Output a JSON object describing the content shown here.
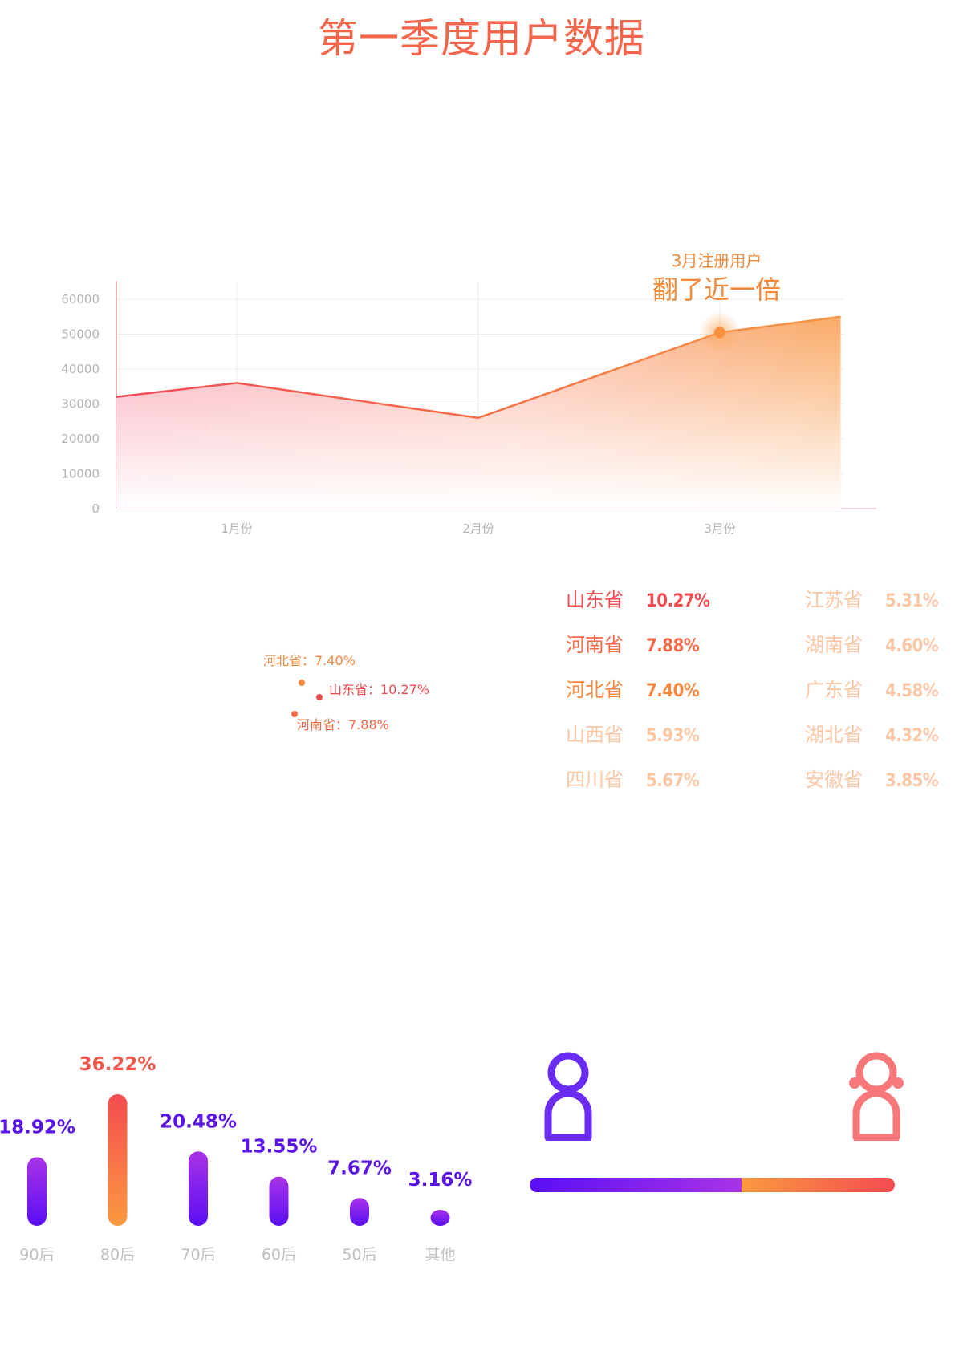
{
  "title": "第一季度用户数据",
  "colors": {
    "title": "#f3664b",
    "red": "#f04b4f",
    "orange": "#f5883e",
    "purple": "#5a12f0",
    "purple_light": "#a52ee8",
    "faded": "#fbc6a4"
  },
  "line_chart": {
    "type": "area",
    "x_labels": [
      "1月份",
      "2月份",
      "3月份"
    ],
    "points": [
      {
        "x": 0.5,
        "y": 32000
      },
      {
        "x": 1,
        "y": 36000
      },
      {
        "x": 2,
        "y": 26000
      },
      {
        "x": 3,
        "y": 50500
      },
      {
        "x": 3.5,
        "y": 55000
      }
    ],
    "highlight": {
      "x": 3,
      "y": 50500
    },
    "ylim": [
      0,
      60000
    ],
    "yticks": [
      0,
      10000,
      20000,
      30000,
      40000,
      50000,
      60000
    ],
    "annotation": {
      "small": "3月注册用户",
      "big": "翻了近一倍"
    }
  },
  "map_labels": [
    {
      "text": "河北省：7.40%",
      "color": "#f5883e"
    },
    {
      "text": "山东省：10.27%",
      "color": "#f04b4f"
    },
    {
      "text": "河南省：7.88%",
      "color": "#f26a48"
    }
  ],
  "provinces": [
    {
      "name": "山东省",
      "value": "10.27%",
      "color": "#f04b4f"
    },
    {
      "name": "河南省",
      "value": "7.88%",
      "color": "#f26a48"
    },
    {
      "name": "河北省",
      "value": "7.40%",
      "color": "#f5883e"
    },
    {
      "name": "山西省",
      "value": "5.93%",
      "color": "#fbc6a4"
    },
    {
      "name": "四川省",
      "value": "5.67%",
      "color": "#fbc6a4"
    },
    {
      "name": "江苏省",
      "value": "5.31%",
      "color": "#fbc6a4"
    },
    {
      "name": "湖南省",
      "value": "4.60%",
      "color": "#fbc6a4"
    },
    {
      "name": "广东省",
      "value": "4.58%",
      "color": "#fbc6a4"
    },
    {
      "name": "湖北省",
      "value": "4.32%",
      "color": "#fbc6a4"
    },
    {
      "name": "安徽省",
      "value": "3.85%",
      "color": "#fbc6a4"
    }
  ],
  "chart_data": [
    {
      "type": "area",
      "title": "第一季度用户数据",
      "x": [
        "1月份",
        "2月份",
        "3月份"
      ],
      "values": [
        36000,
        26000,
        50500
      ],
      "ylim": [
        0,
        60000
      ],
      "grid": true,
      "annotation": "3月注册用户 翻了近一倍"
    },
    {
      "type": "bar",
      "categories": [
        "90后",
        "80后",
        "70后",
        "60后",
        "50后",
        "其他"
      ],
      "values": [
        18.92,
        36.22,
        20.48,
        13.55,
        7.67,
        3.16
      ],
      "labels": [
        "18.92%",
        "36.22%",
        "20.48%",
        "13.55%",
        "7.67%",
        "3.16%"
      ],
      "highlight": "80后"
    }
  ],
  "age_chart": {
    "categories": [
      "90后",
      "80后",
      "70后",
      "60后",
      "50后",
      "其他"
    ],
    "values": [
      18.92,
      36.22,
      20.48,
      13.55,
      7.67,
      3.16
    ],
    "labels": [
      "18.92%",
      "36.22%",
      "20.48%",
      "13.55%",
      "7.67%",
      "3.16%"
    ],
    "highlight_index": 1
  },
  "gender": {
    "male_share": 0.58,
    "male_color": "#6a2cf2",
    "female_color": "#f7787a"
  }
}
